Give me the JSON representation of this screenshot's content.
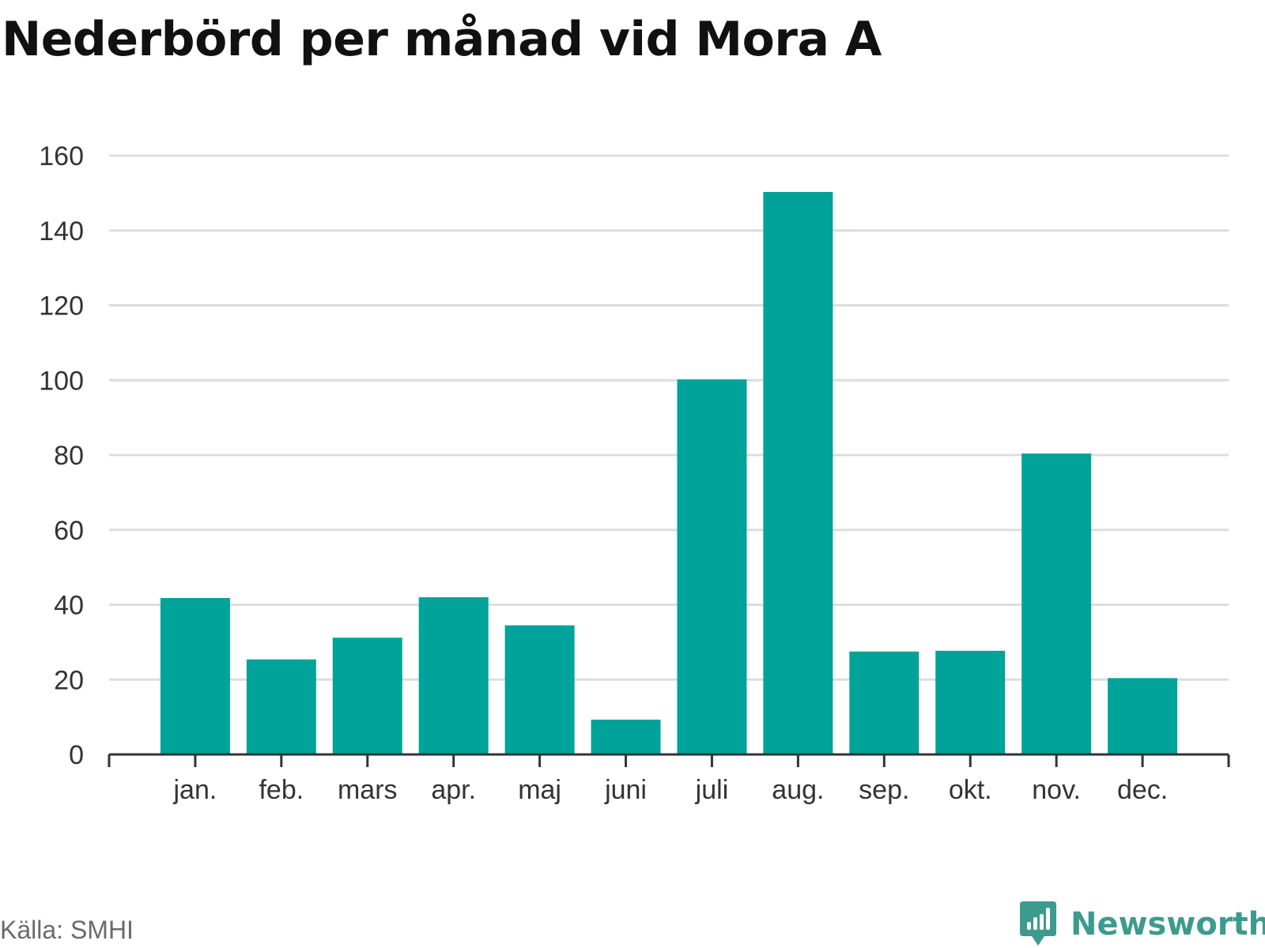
{
  "title": "Nederbörd per månad vid Mora A",
  "source": "Källa: SMHI",
  "brand": "Newsworthy",
  "colors": {
    "bar": "#00A39A",
    "grid": "#dddddd",
    "axis": "#333333",
    "brand": "#3c9a8f"
  },
  "chart_data": {
    "type": "bar",
    "categories": [
      "jan.",
      "feb.",
      "mars",
      "apr.",
      "maj",
      "juni",
      "juli",
      "aug.",
      "sep.",
      "okt.",
      "nov.",
      "dec."
    ],
    "values": [
      41.8,
      25.4,
      31.2,
      42.0,
      34.5,
      9.3,
      100.2,
      150.3,
      27.5,
      27.7,
      80.4,
      20.4
    ],
    "ylim": [
      0,
      160
    ],
    "yticks": [
      0,
      20,
      40,
      60,
      80,
      100,
      120,
      140,
      160
    ],
    "xlabel": "",
    "ylabel": "",
    "grid": true,
    "legend": "none"
  }
}
